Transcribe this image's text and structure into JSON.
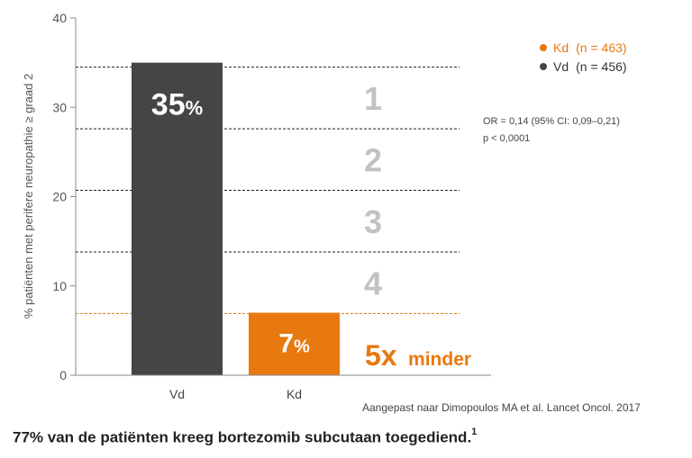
{
  "chart_data": {
    "type": "bar",
    "categories": [
      "Vd",
      "Kd"
    ],
    "values": [
      35,
      7
    ],
    "value_labels": [
      {
        "num": "35",
        "unit": "%"
      },
      {
        "num": "7",
        "unit": "%"
      }
    ],
    "colors": [
      "#454545",
      "#e8790f"
    ],
    "ylabel": "% patiënten met perifere neuropathie ≥ graad 2",
    "ylim": [
      0,
      40
    ],
    "yticks": [
      0,
      10,
      20,
      30,
      40
    ],
    "legend": {
      "placement": "top-right",
      "entries": [
        {
          "label": "Kd",
          "n": "(n = 463)",
          "color": "#e8790f"
        },
        {
          "label": "Vd",
          "n": "(n = 456)",
          "color": "#454545"
        }
      ]
    },
    "stats": [
      "OR = 0,14 (95% CI: 0,09–0,21)",
      "p < 0,0001"
    ],
    "multiples": {
      "numbers": [
        "1",
        "2",
        "3",
        "4"
      ],
      "lines": [
        34.5,
        27.6,
        20.7,
        13.8,
        6.9
      ]
    },
    "reduction": {
      "value": "5x",
      "text": "minder"
    },
    "grid": false
  },
  "source": "Aangepast naar Dimopoulos MA et al. Lancet Oncol. 2017",
  "caption": {
    "text": "77% van de patiënten kreeg bortezomib subcutaan toegediend.",
    "sup": "1"
  }
}
